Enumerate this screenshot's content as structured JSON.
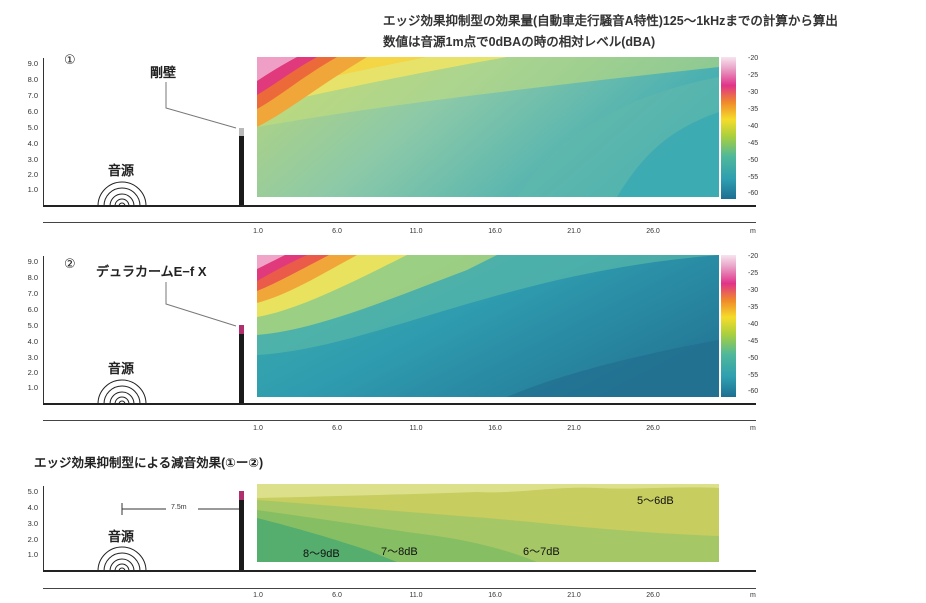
{
  "header": {
    "line1": "エッジ効果抑制型の効果量(自動車走行騒音A特性)125〜1kHzまでの計算から算出",
    "line2": "数値は音源1m点で0dBAの時の相対レベル(dBA)"
  },
  "axes": {
    "y_ticks_panel": [
      "9.0",
      "8.0",
      "7.0",
      "6.0",
      "5.0",
      "4.0",
      "3.0",
      "2.0",
      "1.0"
    ],
    "y_ticks_diff": [
      "5.0",
      "4.0",
      "3.0",
      "2.0",
      "1.0"
    ],
    "x_ticks": [
      "1.0",
      "6.0",
      "11.0",
      "16.0",
      "21.0",
      "26.0"
    ],
    "x_unit": "m"
  },
  "colorbar": {
    "ticks": [
      "-20",
      "-25",
      "-30",
      "-35",
      "-40",
      "-45",
      "-50",
      "-55",
      "-60"
    ]
  },
  "panel1": {
    "number": "①",
    "wall_label": "剛壁",
    "source_label": "音源"
  },
  "panel2": {
    "number": "②",
    "wall_label": "デュラカームE−f X",
    "source_label": "音源"
  },
  "panel3": {
    "title": "エッジ効果抑制型による減音効果(①ー②)",
    "source_label": "音源",
    "distance_label": "7.5m",
    "zones": {
      "z1": "8〜9dB",
      "z2": "7〜8dB",
      "z3": "6〜7dB",
      "z4": "5〜6dB"
    }
  },
  "colors": {
    "wall": "#1a1a1a",
    "wall_cap_rigid": "#b9b9b9",
    "wall_cap_edge": "#b0306e"
  }
}
